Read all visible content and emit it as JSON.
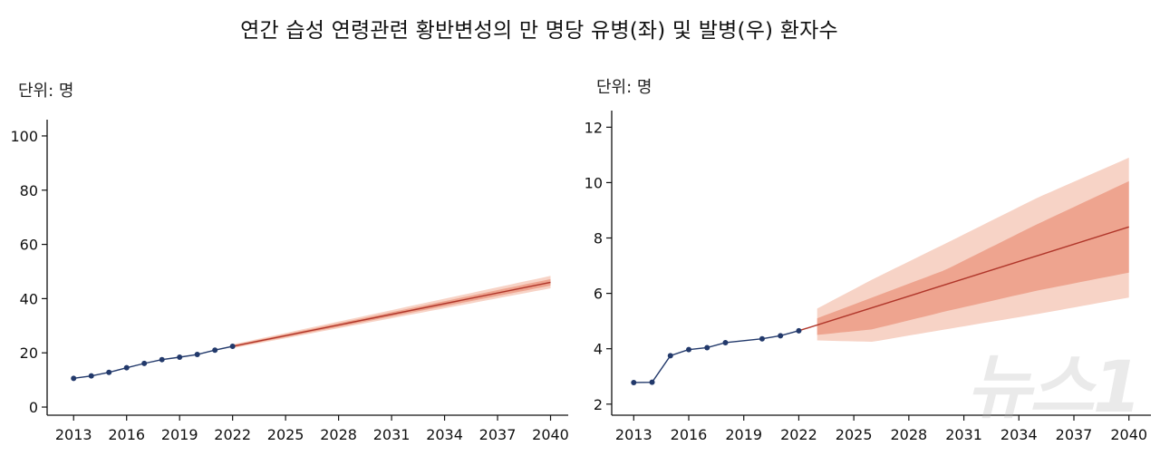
{
  "title": "연간 습성 연령관련 황반변성의 만 명당 유병(좌) 및 발병(우) 환자수",
  "watermark": "뉴스1",
  "colors": {
    "observed": "#22396b",
    "forecast": "#b0362a",
    "band_inner": "#eea48f",
    "band_outer": "#f7d3c6",
    "axis": "#111111"
  },
  "chart_data": [
    {
      "type": "line",
      "unit_label": "단위: 명",
      "xlim": [
        2011.5,
        2041
      ],
      "ylim": [
        -3,
        106
      ],
      "xticks": [
        2013,
        2016,
        2019,
        2022,
        2025,
        2028,
        2031,
        2034,
        2037,
        2040
      ],
      "yticks": [
        0,
        20,
        40,
        60,
        80,
        100
      ],
      "observed": {
        "x": [
          2013,
          2014,
          2015,
          2016,
          2017,
          2018,
          2019,
          2020,
          2021,
          2022
        ],
        "y": [
          10.6,
          11.5,
          12.8,
          14.5,
          16.1,
          17.5,
          18.4,
          19.4,
          21.0,
          22.4
        ]
      },
      "forecast": {
        "x": [
          2022,
          2040
        ],
        "y": [
          22.4,
          46.0
        ],
        "band_inner": {
          "x": [
            2022,
            2040
          ],
          "low": [
            22.0,
            44.8
          ],
          "high": [
            22.8,
            47.2
          ]
        },
        "band_outer": {
          "x": [
            2022,
            2040
          ],
          "low": [
            21.7,
            43.8
          ],
          "high": [
            23.1,
            48.4
          ]
        }
      }
    },
    {
      "type": "line",
      "unit_label": "단위: 명",
      "xlim": [
        2011.8,
        2041.2
      ],
      "ylim": [
        1.6,
        12.6
      ],
      "xticks": [
        2013,
        2016,
        2019,
        2022,
        2025,
        2028,
        2031,
        2034,
        2037,
        2040
      ],
      "yticks": [
        2,
        4,
        6,
        8,
        10,
        12
      ],
      "observed": {
        "x": [
          2013,
          2014,
          2015,
          2016,
          2017,
          2018,
          2020,
          2021,
          2022
        ],
        "y": [
          2.78,
          2.79,
          3.75,
          3.97,
          4.04,
          4.22,
          4.36,
          4.47,
          4.65
        ]
      },
      "forecast": {
        "x": [
          2022,
          2040
        ],
        "y": [
          4.65,
          8.4
        ],
        "band_inner": {
          "x": [
            2023,
            2026,
            2030,
            2035,
            2040
          ],
          "low": [
            4.5,
            4.7,
            5.35,
            6.1,
            6.75
          ],
          "high": [
            5.1,
            5.85,
            6.85,
            8.5,
            10.05
          ]
        },
        "band_outer": {
          "x": [
            2023,
            2026,
            2030,
            2035,
            2040
          ],
          "low": [
            4.3,
            4.25,
            4.7,
            5.25,
            5.85
          ],
          "high": [
            5.45,
            6.5,
            7.8,
            9.45,
            10.9
          ]
        }
      }
    }
  ]
}
